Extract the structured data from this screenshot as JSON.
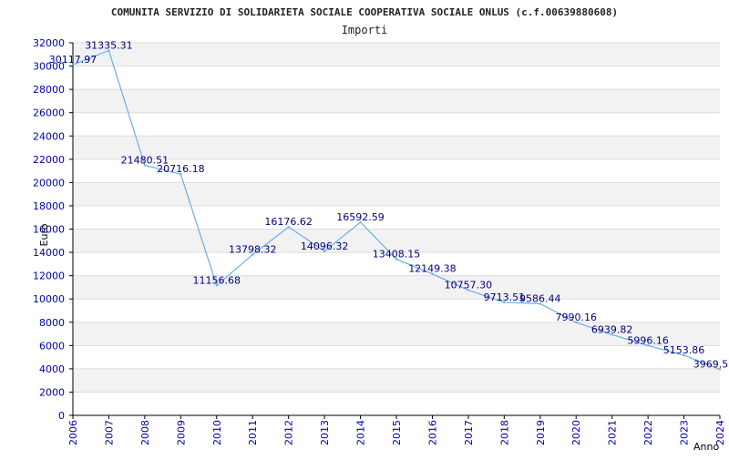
{
  "chart_data": {
    "type": "line",
    "title": "COMUNITA SERVIZIO DI SOLIDARIETA SOCIALE COOPERATIVA SOCIALE ONLUS (c.f.00639880608)",
    "subtitle": "Importi",
    "xlabel": "Anno",
    "ylabel": "Euro",
    "x": [
      "2006",
      "2007",
      "2008",
      "2009",
      "2010",
      "2011",
      "2012",
      "2013",
      "2014",
      "2015",
      "2016",
      "2017",
      "2018",
      "2019",
      "2020",
      "2021",
      "2022",
      "2023",
      "2024"
    ],
    "series": [
      {
        "values": [
          30117.97,
          31335.31,
          21480.51,
          20716.18,
          11156.68,
          13798.32,
          16176.62,
          14096.32,
          16592.59,
          13408.15,
          12149.38,
          10757.3,
          9713.51,
          9586.44,
          7990.16,
          6939.82,
          5996.16,
          5153.86,
          3969.5
        ],
        "labels": [
          "30117.97",
          "31335.31",
          "21480.51",
          "20716.18",
          "11156.68",
          "13798.32",
          "16176.62",
          "14096.32",
          "16592.59",
          "13408.15",
          "12149.38",
          "10757.30",
          "9713.51",
          "9586.44",
          "7990.16",
          "6939.82",
          "5996.16",
          "5153.86",
          "3969.5"
        ]
      }
    ],
    "ylim": [
      0,
      32000
    ],
    "yticks": [
      "0",
      "2000",
      "4000",
      "6000",
      "8000",
      "10000",
      "12000",
      "14000",
      "16000",
      "18000",
      "20000",
      "22000",
      "24000",
      "26000",
      "28000",
      "30000",
      "32000"
    ],
    "grid": true,
    "colors": {
      "line": "#6aaee6",
      "band": "#f2f2f2",
      "tick": "#0000aa",
      "label": "#000080"
    }
  }
}
